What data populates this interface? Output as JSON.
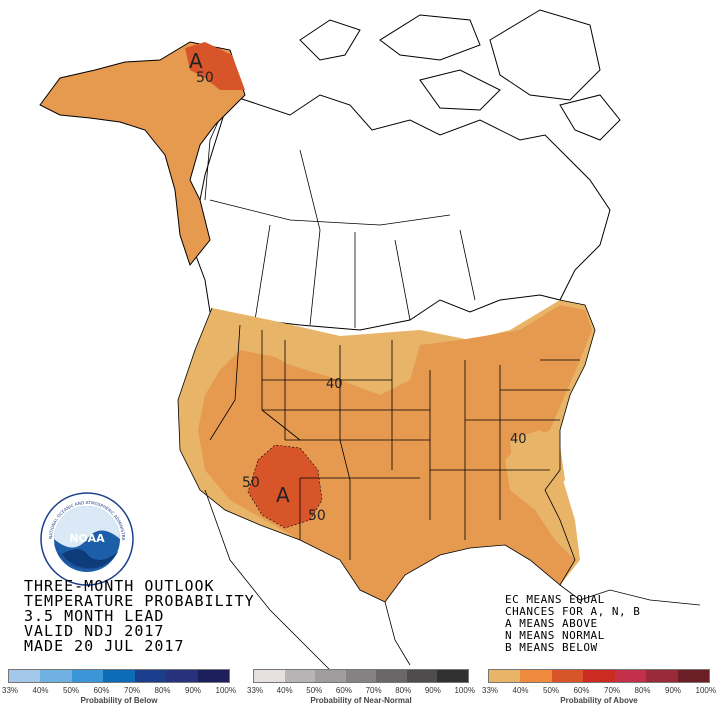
{
  "title_lines": [
    "THREE-MONTH OUTLOOK",
    "TEMPERATURE PROBABILITY",
    "3.5 MONTH LEAD",
    "VALID NDJ 2017",
    "MADE 20 JUL 2017"
  ],
  "key_lines": [
    "EC MEANS EQUAL",
    "CHANCES FOR A, N, B",
    "A MEANS ABOVE",
    "N MEANS NORMAL",
    "B MEANS BELOW"
  ],
  "map_labels": {
    "alaska_contour": "50",
    "alaska_letter": "A",
    "plains_contour": "40",
    "east_contour": "40",
    "southwest_contour_left": "50",
    "southwest_contour_right": "50",
    "southwest_letter": "A"
  },
  "colors": {
    "above_40": "#e69a50",
    "above_33": "#e8b468",
    "above_50": "#d8552a",
    "above_60": "#cc3a22",
    "land": "#ffffff",
    "border": "#000000"
  },
  "logo": {
    "ring_text": "NATIONAL OCEANIC AND ATMOSPHERIC ADMINISTRATION",
    "bottom_text": "U.S. DEPARTMENT OF COMMERCE",
    "center_text": "NOAA"
  },
  "scales": {
    "below": {
      "ticks": [
        "33%",
        "40%",
        "50%",
        "60%",
        "70%",
        "80%",
        "90%",
        "100%"
      ],
      "label": "Probability of Below",
      "colors": [
        "#a3c8ea",
        "#6fb0e0",
        "#3a96d6",
        "#0d6bb7",
        "#1b3e8c",
        "#26327c",
        "#1d1f5c"
      ]
    },
    "normal": {
      "ticks": [
        "33%",
        "40%",
        "50%",
        "60%",
        "70%",
        "80%",
        "90%",
        "100%"
      ],
      "label": "Probability of Near-Normal",
      "colors": [
        "#e6dfe0",
        "#b8b4b5",
        "#a09d9e",
        "#858283",
        "#6a6768",
        "#4e4c4d",
        "#323132"
      ]
    },
    "above": {
      "ticks": [
        "33%",
        "40%",
        "50%",
        "60%",
        "70%",
        "80%",
        "90%",
        "100%"
      ],
      "label": "Probability of Above",
      "colors": [
        "#e8b468",
        "#f08a3c",
        "#d8552a",
        "#cc2b22",
        "#c4304a",
        "#9a2a38",
        "#6b1e26"
      ]
    }
  }
}
